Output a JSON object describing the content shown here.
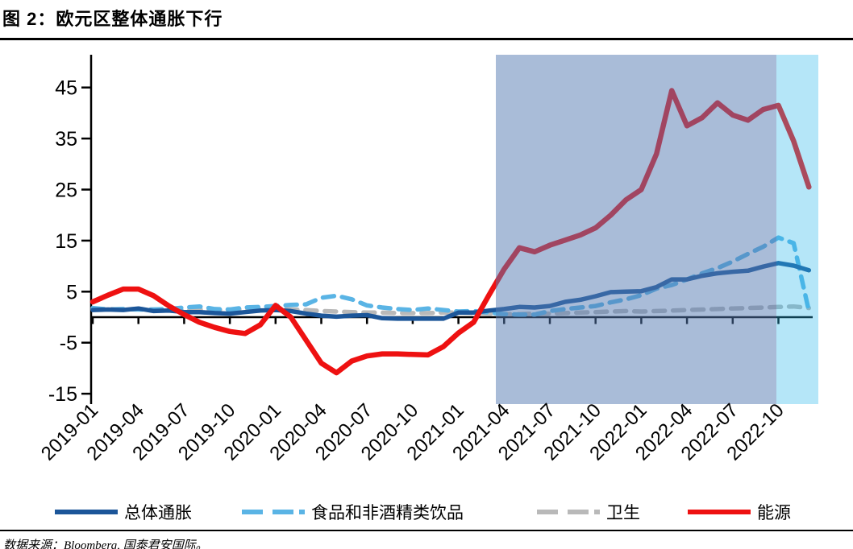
{
  "title": "图 2：欧元区整体通胀下行",
  "source": "数据来源：Bloomberg, 国泰君安国际。",
  "chart_data": {
    "type": "line",
    "x_start": "2019-01",
    "x_end": "2022-12",
    "x_frequency": "monthly",
    "axis": {
      "y_ticks": [
        45,
        35,
        25,
        15,
        5,
        -5,
        -15
      ],
      "ylim": [
        -15,
        50
      ],
      "x_tick_labels": [
        "2019-01",
        "2019-04",
        "2019-07",
        "2019-10",
        "2020-01",
        "2020-04",
        "2020-07",
        "2020-10",
        "2021-01",
        "2021-04",
        "2021-07",
        "2021-10",
        "2022-01",
        "2022-04",
        "2022-07",
        "2022-10"
      ],
      "grid": false,
      "zero_baseline": true
    },
    "legend_position": "bottom",
    "series": [
      {
        "key": "overall",
        "label": "总体通胀",
        "color": "#1c5699",
        "style": "solid",
        "width": 5.5,
        "values": [
          1.4,
          1.5,
          1.4,
          1.7,
          1.2,
          1.3,
          1.0,
          1.0,
          0.8,
          0.7,
          1.0,
          1.3,
          1.4,
          1.2,
          0.7,
          0.3,
          0.1,
          0.3,
          0.4,
          -0.2,
          -0.3,
          -0.3,
          -0.3,
          -0.3,
          0.9,
          0.9,
          1.3,
          1.6,
          2.0,
          1.9,
          2.2,
          3.0,
          3.4,
          4.1,
          4.9,
          5.0,
          5.1,
          5.9,
          7.4,
          7.4,
          8.1,
          8.6,
          8.9,
          9.1,
          9.9,
          10.6,
          10.1,
          9.2
        ]
      },
      {
        "key": "food",
        "label": "食品和非酒精类饮品",
        "color": "#5ab4e5",
        "style": "dashed",
        "width": 5.5,
        "values": [
          1.8,
          1.5,
          1.6,
          1.5,
          1.5,
          1.6,
          1.9,
          2.1,
          1.6,
          1.5,
          1.9,
          2.0,
          2.2,
          2.4,
          2.5,
          3.8,
          4.2,
          3.5,
          2.3,
          1.9,
          1.6,
          1.4,
          1.7,
          1.4,
          1.1,
          1.2,
          0.9,
          0.6,
          0.5,
          0.5,
          1.2,
          1.6,
          1.9,
          2.2,
          2.9,
          3.5,
          4.3,
          5.6,
          6.3,
          7.4,
          8.6,
          9.6,
          10.9,
          12.4,
          13.8,
          15.6,
          14.5,
          1.2
        ]
      },
      {
        "key": "health",
        "label": "卫生",
        "color": "#b9b9b9",
        "style": "dashed",
        "width": 5.5,
        "values": [
          1.5,
          1.6,
          1.5,
          1.6,
          1.5,
          1.4,
          1.4,
          1.5,
          1.4,
          1.5,
          1.6,
          1.7,
          1.6,
          1.5,
          1.4,
          1.2,
          1.1,
          1.0,
          0.9,
          0.9,
          0.8,
          0.8,
          0.8,
          0.9,
          0.9,
          0.8,
          0.7,
          0.6,
          0.6,
          0.7,
          0.7,
          0.8,
          0.9,
          1.0,
          1.1,
          1.2,
          1.1,
          1.2,
          1.3,
          1.4,
          1.5,
          1.6,
          1.7,
          1.8,
          1.9,
          2.0,
          2.1,
          1.8
        ]
      },
      {
        "key": "energy",
        "label": "能源",
        "color": "#ee1111",
        "style": "solid",
        "width": 6.5,
        "values": [
          3.0,
          4.3,
          5.5,
          5.5,
          4.2,
          2.2,
          0.5,
          -1.0,
          -2.0,
          -2.8,
          -3.2,
          -1.5,
          2.3,
          0.0,
          -4.5,
          -9.0,
          -10.9,
          -8.6,
          -7.6,
          -7.2,
          -7.2,
          -7.3,
          -7.4,
          -5.8,
          -3.1,
          -1.0,
          4.3,
          9.4,
          13.6,
          12.8,
          14.1,
          15.1,
          16.1,
          17.5,
          20.0,
          23.0,
          25.0,
          32.0,
          44.4,
          37.5,
          39.1,
          42.0,
          39.6,
          38.6,
          40.7,
          41.5,
          34.5,
          25.5
        ]
      }
    ],
    "shaded_regions": [
      {
        "from": "2021-04",
        "to": "2022-10",
        "color": "rgba(83,122,178,0.5)"
      },
      {
        "from": "2022-10",
        "to": "2022-12",
        "color": "rgba(44,184,235,0.35)"
      }
    ]
  }
}
